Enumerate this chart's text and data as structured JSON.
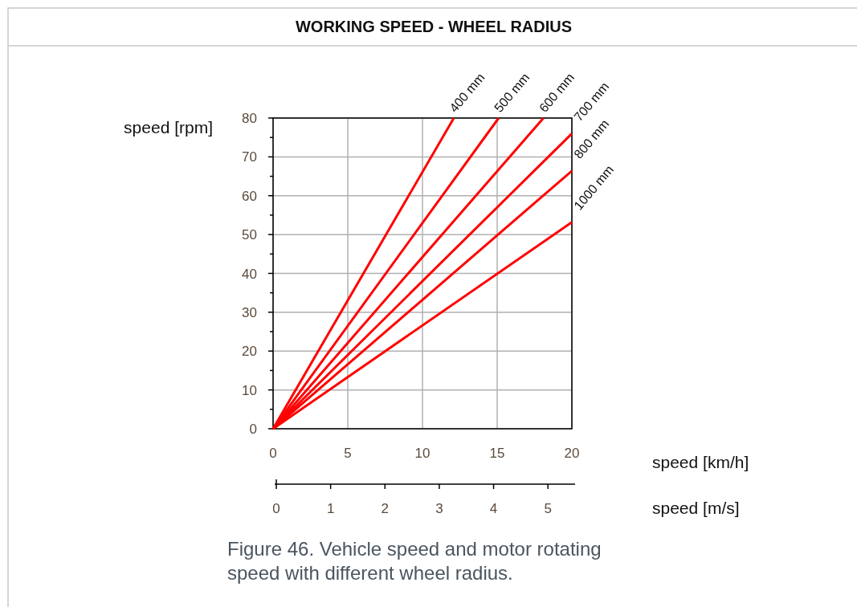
{
  "chart_data": {
    "type": "line",
    "title": "WORKING SPEED - WHEEL RADIUS",
    "xlabel": "speed [km/h]",
    "x2label": "speed [m/s]",
    "ylabel": "speed [rpm]",
    "annotations": [
      "Figure 46. Vehicle speed and motor rotating speed with different wheel radius."
    ],
    "series": [
      {
        "name": "400 mm",
        "color": "#ff0000",
        "x": [
          0,
          12.1
        ],
        "values": [
          0,
          80
        ]
      },
      {
        "name": "500 mm",
        "color": "#ff0000",
        "x": [
          0,
          15.1
        ],
        "values": [
          0,
          80
        ]
      },
      {
        "name": "600 mm",
        "color": "#ff0000",
        "x": [
          0,
          18.1
        ],
        "values": [
          0,
          80
        ]
      },
      {
        "name": "700 mm",
        "color": "#ff0000",
        "x": [
          0,
          20
        ],
        "values": [
          0,
          76
        ]
      },
      {
        "name": "800 mm",
        "color": "#ff0000",
        "x": [
          0,
          20
        ],
        "values": [
          0,
          66.4
        ]
      },
      {
        "name": "1000 mm",
        "color": "#ff0000",
        "x": [
          0,
          20
        ],
        "values": [
          0,
          53.2
        ]
      }
    ],
    "xlim": [
      0,
      20
    ],
    "xticks": [
      0,
      5,
      10,
      15,
      20
    ],
    "x2lim": [
      0,
      5.5
    ],
    "x2ticks": [
      0,
      1,
      2,
      3,
      4,
      5
    ],
    "ylim": [
      0,
      80
    ],
    "yticks": [
      0,
      10,
      20,
      30,
      40,
      50,
      60,
      70,
      80
    ],
    "grid": true,
    "marker": "none",
    "line_style": "solid"
  }
}
